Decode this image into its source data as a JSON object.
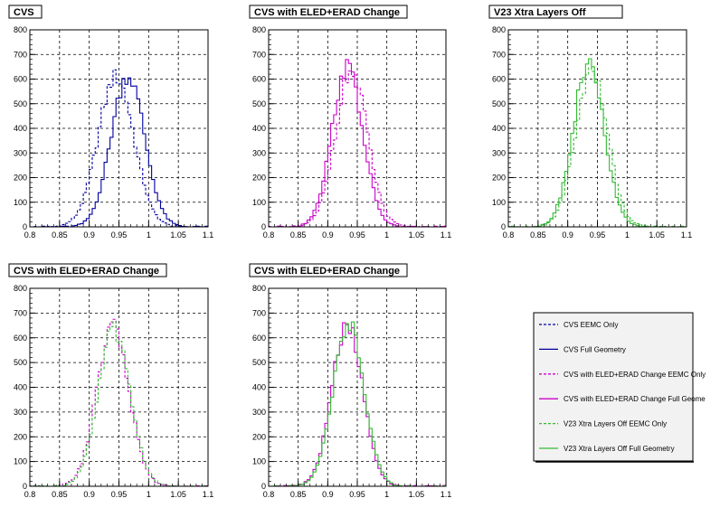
{
  "colors": {
    "cvs": "#0000a0",
    "eled": "#cc00cc",
    "v23": "#33bb33",
    "frame": "#000000",
    "grid": "#000000",
    "legend_bg": "#f2f2f2"
  },
  "legend": {
    "entries": [
      {
        "label": "CVS EEMC Only",
        "color": "#0000a0",
        "dash": true
      },
      {
        "label": "CVS Full Geometry",
        "color": "#0000a0",
        "dash": false
      },
      {
        "label": "CVS with ELED+ERAD Change EEMC Only",
        "color": "#cc00cc",
        "dash": true
      },
      {
        "label": "CVS with ELED+ERAD Change Full Geome",
        "color": "#cc00cc",
        "dash": false
      },
      {
        "label": "V23 Xtra Layers Off EEMC Only",
        "color": "#33bb33",
        "dash": true
      },
      {
        "label": "V23 Xtra Layers Off Full Geometry",
        "color": "#33bb33",
        "dash": false
      }
    ]
  },
  "chart_data": [
    {
      "type": "line",
      "title": "CVS",
      "xlim": [
        0.8,
        1.1
      ],
      "ylim": [
        0,
        800
      ],
      "xticks": [
        "0.8",
        "0.85",
        "0.9",
        "0.95",
        "1",
        "1.05",
        "1.1"
      ],
      "yticks": [
        "0",
        "100",
        "200",
        "300",
        "400",
        "500",
        "600",
        "700",
        "800"
      ],
      "grid": true,
      "series": [
        {
          "color": "#0000a0",
          "dash": true,
          "center": 0.945,
          "sigma": 0.03,
          "peak": 610
        },
        {
          "color": "#0000a0",
          "dash": false,
          "center": 0.965,
          "sigma": 0.028,
          "peak": 615
        }
      ]
    },
    {
      "type": "line",
      "title": "CVS with ELED+ERAD Change",
      "xlim": [
        0.8,
        1.1
      ],
      "ylim": [
        0,
        800
      ],
      "xticks": [
        "0.8",
        "0.85",
        "0.9",
        "0.95",
        "1",
        "1.05",
        "1.1"
      ],
      "yticks": [
        "0",
        "100",
        "200",
        "300",
        "400",
        "500",
        "600",
        "700",
        "800"
      ],
      "grid": true,
      "series": [
        {
          "color": "#cc00cc",
          "dash": true,
          "center": 0.94,
          "sigma": 0.027,
          "peak": 630
        },
        {
          "color": "#cc00cc",
          "dash": false,
          "center": 0.933,
          "sigma": 0.026,
          "peak": 650
        }
      ]
    },
    {
      "type": "line",
      "title": "V23 Xtra Layers Off",
      "xlim": [
        0.8,
        1.1
      ],
      "ylim": [
        0,
        800
      ],
      "xticks": [
        "0.8",
        "0.85",
        "0.9",
        "0.95",
        "1",
        "1.05",
        "1.1"
      ],
      "yticks": [
        "0",
        "100",
        "200",
        "300",
        "400",
        "500",
        "600",
        "700",
        "800"
      ],
      "grid": true,
      "series": [
        {
          "color": "#33bb33",
          "dash": true,
          "center": 0.94,
          "sigma": 0.027,
          "peak": 630
        },
        {
          "color": "#33bb33",
          "dash": false,
          "center": 0.935,
          "sigma": 0.026,
          "peak": 660
        }
      ]
    },
    {
      "type": "line",
      "title": "CVS with ELED+ERAD Change",
      "xlim": [
        0.8,
        1.1
      ],
      "ylim": [
        0,
        800
      ],
      "xticks": [
        "0.8",
        "0.85",
        "0.9",
        "0.95",
        "1",
        "1.05",
        "1.1"
      ],
      "yticks": [
        "0",
        "100",
        "200",
        "300",
        "400",
        "500",
        "600",
        "700",
        "800"
      ],
      "grid": true,
      "series": [
        {
          "color": "#cc00cc",
          "dash": true,
          "center": 0.94,
          "sigma": 0.027,
          "peak": 645
        },
        {
          "color": "#33bb33",
          "dash": true,
          "center": 0.942,
          "sigma": 0.027,
          "peak": 630
        }
      ]
    },
    {
      "type": "line",
      "title": "CVS with ELED+ERAD Change",
      "xlim": [
        0.8,
        1.1
      ],
      "ylim": [
        0,
        800
      ],
      "xticks": [
        "0.8",
        "0.85",
        "0.9",
        "0.95",
        "1",
        "1.05",
        "1.1"
      ],
      "yticks": [
        "0",
        "100",
        "200",
        "300",
        "400",
        "500",
        "600",
        "700",
        "800"
      ],
      "grid": true,
      "series": [
        {
          "color": "#cc00cc",
          "dash": false,
          "center": 0.933,
          "sigma": 0.026,
          "peak": 650
        },
        {
          "color": "#33bb33",
          "dash": false,
          "center": 0.935,
          "sigma": 0.026,
          "peak": 660
        }
      ]
    }
  ]
}
